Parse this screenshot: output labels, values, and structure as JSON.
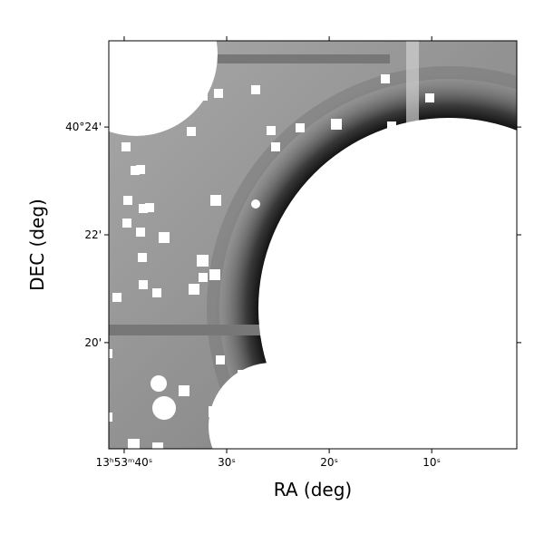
{
  "chart_data": {
    "type": "image",
    "xlabel": "RA (deg)",
    "ylabel": "DEC (deg)",
    "xlim": [
      41.5,
      1.7
    ],
    "ylim": [
      18.03,
      25.6
    ],
    "xticks": [
      {
        "value": 40,
        "label": "13ʰ53ᵐ40ˢ"
      },
      {
        "value": 30,
        "label": "30ˢ"
      },
      {
        "value": 20,
        "label": "20ˢ"
      },
      {
        "value": 10,
        "label": "10ˢ"
      }
    ],
    "yticks": [
      {
        "value": 24,
        "label": "40°24'"
      },
      {
        "value": 22,
        "label": "22'"
      },
      {
        "value": 20,
        "label": "20'"
      }
    ],
    "colormap": "gray"
  }
}
